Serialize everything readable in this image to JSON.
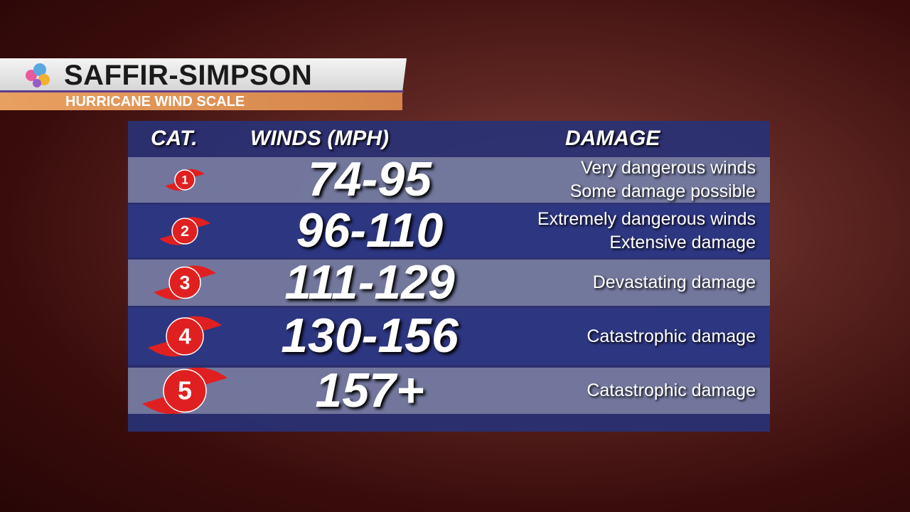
{
  "header": {
    "title": "SAFFIR-SIMPSON",
    "subtitle": "HURRICANE WIND SCALE"
  },
  "table": {
    "columns": [
      "CAT.",
      "WINDS (MPH)",
      "DAMAGE"
    ],
    "rows": [
      {
        "category": "1",
        "winds": "74-95",
        "damage": [
          "Very dangerous winds",
          "Some damage possible"
        ]
      },
      {
        "category": "2",
        "winds": "96-110",
        "damage": [
          "Extremely dangerous winds",
          "Extensive damage"
        ]
      },
      {
        "category": "3",
        "winds": "111-129",
        "damage": [
          "Devastating damage"
        ]
      },
      {
        "category": "4",
        "winds": "130-156",
        "damage": [
          "Catastrophic damage"
        ]
      },
      {
        "category": "5",
        "winds": "157+",
        "damage": [
          "Catastrophic damage"
        ]
      }
    ]
  }
}
